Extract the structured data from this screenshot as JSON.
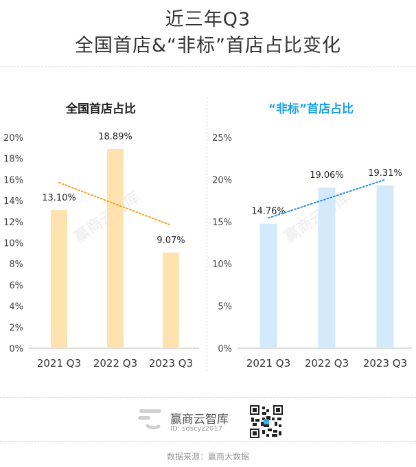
{
  "title": {
    "line1": "近三年Q3",
    "line2": "全国首店&“非标”首店占比变化"
  },
  "chart_data": [
    {
      "type": "bar",
      "title": "全国首店占比",
      "categories": [
        "2021 Q3",
        "2022 Q3",
        "2023 Q3"
      ],
      "values": [
        13.1,
        18.89,
        9.07
      ],
      "value_labels": [
        "13.10%",
        "18.89%",
        "9.07%"
      ],
      "ylim": [
        0,
        20
      ],
      "yticks": [
        0,
        2,
        4,
        6,
        8,
        10,
        12,
        14,
        16,
        18,
        20
      ],
      "ytick_labels": [
        "0%",
        "2%",
        "4%",
        "6%",
        "8%",
        "10%",
        "12%",
        "14%",
        "16%",
        "18%",
        "20%"
      ],
      "trendline": "dotted, decreasing",
      "bar_color": "#ffe2ad",
      "trend_color": "#f5a623",
      "title_color": "#222222",
      "grid": false
    },
    {
      "type": "bar",
      "title": "“非标”首店占比",
      "categories": [
        "2021 Q3",
        "2022 Q3",
        "2023 Q3"
      ],
      "values": [
        14.76,
        19.06,
        19.31
      ],
      "value_labels": [
        "14.76%",
        "19.06%",
        "19.31%"
      ],
      "ylim": [
        0,
        25
      ],
      "yticks": [
        0,
        5,
        10,
        15,
        20,
        25
      ],
      "ytick_labels": [
        "0%",
        "5%",
        "10%",
        "15%",
        "20%",
        "25%"
      ],
      "trendline": "dotted, increasing",
      "bar_color": "#d3e9fc",
      "trend_color": "#2b8fd6",
      "title_color": "#1aa0e6",
      "grid": false
    }
  ],
  "watermark": "赢商云智库",
  "footer": {
    "brand": "赢商云智库",
    "id_text": "ID: sdscyz2017",
    "source": "数据来源：赢商大数据"
  },
  "icons": {
    "logo": "brand-logo-icon",
    "qr": "qr-code-icon"
  }
}
